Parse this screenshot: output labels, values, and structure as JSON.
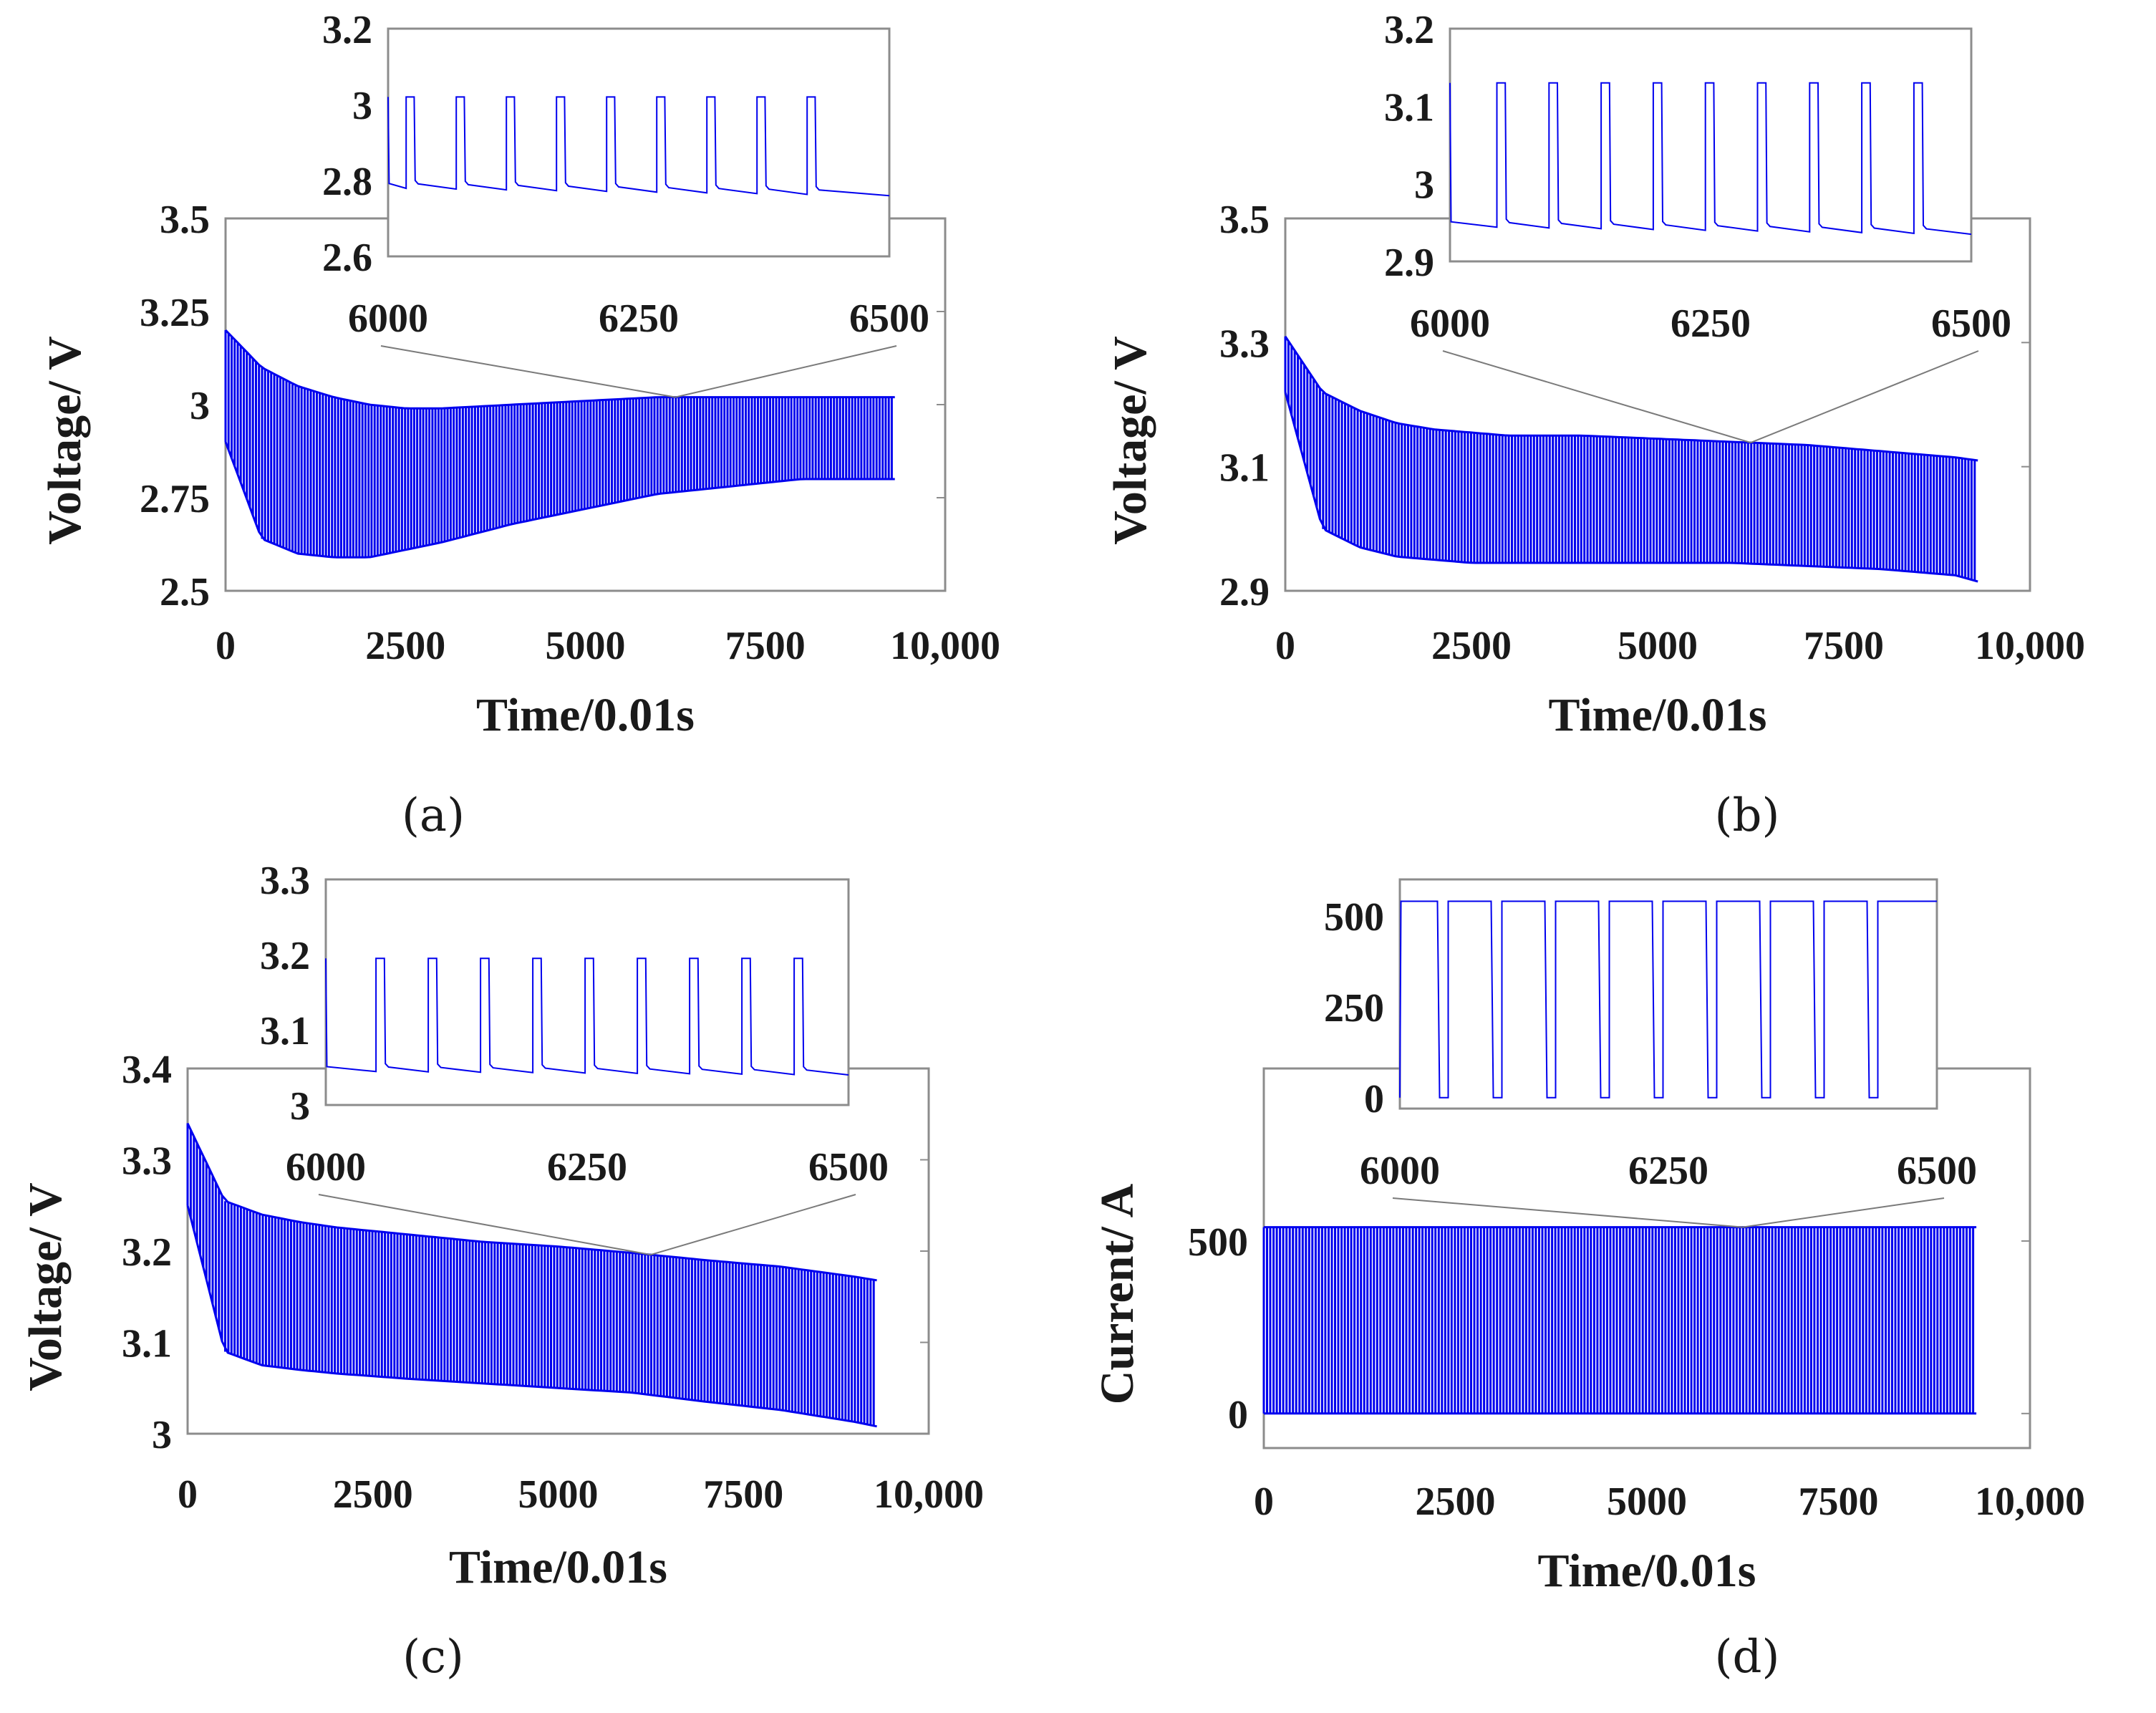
{
  "chart_data": [
    {
      "panel": "(a)",
      "type": "line",
      "caption": "(a)",
      "xlabel": "Time/0.01s",
      "ylabel": "Voltage/ V",
      "xlim": [
        0,
        10000
      ],
      "ylim": [
        2.5,
        3.5
      ],
      "xticks": [
        "0",
        "2500",
        "5000",
        "7500",
        "10,000"
      ],
      "yticks": [
        "2.5",
        "2.75",
        "3",
        "3.25",
        "3.5"
      ],
      "series": [
        {
          "x": [
            0,
            500,
            1000,
            1500,
            2000,
            2500,
            3000,
            4000,
            5000,
            6000,
            7000,
            8000,
            9000,
            9300
          ],
          "upper": [
            3.2,
            3.1,
            3.05,
            3.02,
            3.0,
            2.99,
            2.99,
            3.0,
            3.01,
            3.02,
            3.02,
            3.02,
            3.02,
            3.02
          ],
          "lower": [
            2.9,
            2.64,
            2.6,
            2.59,
            2.59,
            2.61,
            2.63,
            2.68,
            2.72,
            2.76,
            2.78,
            2.8,
            2.8,
            2.8
          ]
        }
      ],
      "inset": {
        "xlim": [
          6000,
          6500
        ],
        "ylim": [
          2.6,
          3.2
        ],
        "xticks": [
          "6000",
          "6250",
          "6500"
        ],
        "yticks": [
          "2.6",
          "2.8",
          "3",
          "3.2"
        ],
        "high": 3.02,
        "low_start": 2.78,
        "low_end": 2.76,
        "pulse_starts": [
          6018,
          6068,
          6118,
          6168,
          6218,
          6268,
          6318,
          6368,
          6418
        ],
        "pulse_width": 8
      }
    },
    {
      "panel": "(b)",
      "type": "line",
      "caption": "(b)",
      "xlabel": "Time/0.01s",
      "ylabel": "Voltage/ V",
      "xlim": [
        0,
        10000
      ],
      "ylim": [
        2.9,
        3.5
      ],
      "xticks": [
        "0",
        "2500",
        "5000",
        "7500",
        "10,000"
      ],
      "yticks": [
        "2.9",
        "3.1",
        "3.3",
        "3.5"
      ],
      "series": [
        {
          "x": [
            0,
            500,
            1000,
            1500,
            2000,
            2500,
            3000,
            4000,
            5000,
            6000,
            7000,
            8000,
            9000,
            9300
          ],
          "upper": [
            3.31,
            3.22,
            3.19,
            3.17,
            3.16,
            3.155,
            3.15,
            3.15,
            3.145,
            3.14,
            3.135,
            3.125,
            3.115,
            3.11
          ],
          "lower": [
            3.22,
            3.0,
            2.97,
            2.955,
            2.95,
            2.945,
            2.945,
            2.945,
            2.945,
            2.945,
            2.94,
            2.935,
            2.925,
            2.915
          ]
        }
      ],
      "inset": {
        "xlim": [
          6000,
          6500
        ],
        "ylim": [
          2.9,
          3.2
        ],
        "xticks": [
          "6000",
          "6250",
          "6500"
        ],
        "yticks": [
          "2.9",
          "3",
          "3.1",
          "3.2"
        ],
        "high": 3.13,
        "low_start": 2.945,
        "low_end": 2.935,
        "pulse_starts": [
          6045,
          6095,
          6145,
          6195,
          6245,
          6295,
          6345,
          6395,
          6445
        ],
        "pulse_width": 8
      }
    },
    {
      "panel": "(c)",
      "type": "line",
      "caption": "(c)",
      "xlabel": "Time/0.01s",
      "ylabel": "Voltage/ V",
      "xlim": [
        0,
        10000
      ],
      "ylim": [
        3.0,
        3.4
      ],
      "xticks": [
        "0",
        "2500",
        "5000",
        "7500",
        "10,000"
      ],
      "yticks": [
        "3",
        "3.1",
        "3.2",
        "3.3",
        "3.4"
      ],
      "series": [
        {
          "x": [
            0,
            500,
            1000,
            1500,
            2000,
            2500,
            3000,
            4000,
            5000,
            6000,
            7000,
            8000,
            9000,
            9300
          ],
          "upper": [
            3.34,
            3.255,
            3.24,
            3.232,
            3.226,
            3.222,
            3.218,
            3.21,
            3.205,
            3.198,
            3.19,
            3.183,
            3.172,
            3.168
          ],
          "lower": [
            3.25,
            3.09,
            3.075,
            3.07,
            3.066,
            3.063,
            3.06,
            3.055,
            3.05,
            3.045,
            3.035,
            3.026,
            3.013,
            3.008
          ]
        }
      ],
      "inset": {
        "xlim": [
          6000,
          6500
        ],
        "ylim": [
          3.0,
          3.3
        ],
        "xticks": [
          "6000",
          "6250",
          "6500"
        ],
        "yticks": [
          "3",
          "3.1",
          "3.2",
          "3.3"
        ],
        "high": 3.195,
        "low_start": 3.045,
        "low_end": 3.04,
        "pulse_starts": [
          6048,
          6098,
          6148,
          6198,
          6248,
          6298,
          6348,
          6398,
          6448
        ],
        "pulse_width": 8
      }
    },
    {
      "panel": "(d)",
      "type": "line",
      "caption": "(d)",
      "xlabel": "Time/0.01s",
      "ylabel": "Current/ A",
      "xlim": [
        0,
        10000
      ],
      "ylim": [
        -100,
        1000
      ],
      "xticks": [
        "0",
        "2500",
        "5000",
        "7500",
        "10,000"
      ],
      "yticks": [
        "0",
        "500"
      ],
      "ytick_values": [
        0,
        500
      ],
      "series": [
        {
          "x": [
            0,
            9300
          ],
          "upper": [
            540,
            540
          ],
          "lower": [
            0,
            0
          ]
        }
      ],
      "inset": {
        "xlim": [
          6000,
          6500
        ],
        "ylim": [
          -30,
          600
        ],
        "xticks": [
          "6000",
          "6250",
          "6500"
        ],
        "yticks": [
          "0",
          "250",
          "500"
        ],
        "ytick_values": [
          0,
          250,
          500
        ],
        "high": 540,
        "low_start": 0,
        "low_end": 0,
        "inverted": true,
        "pulse_starts": [
          6035,
          6085,
          6135,
          6185,
          6235,
          6285,
          6335,
          6385,
          6435
        ],
        "pulse_width": 10
      }
    }
  ]
}
